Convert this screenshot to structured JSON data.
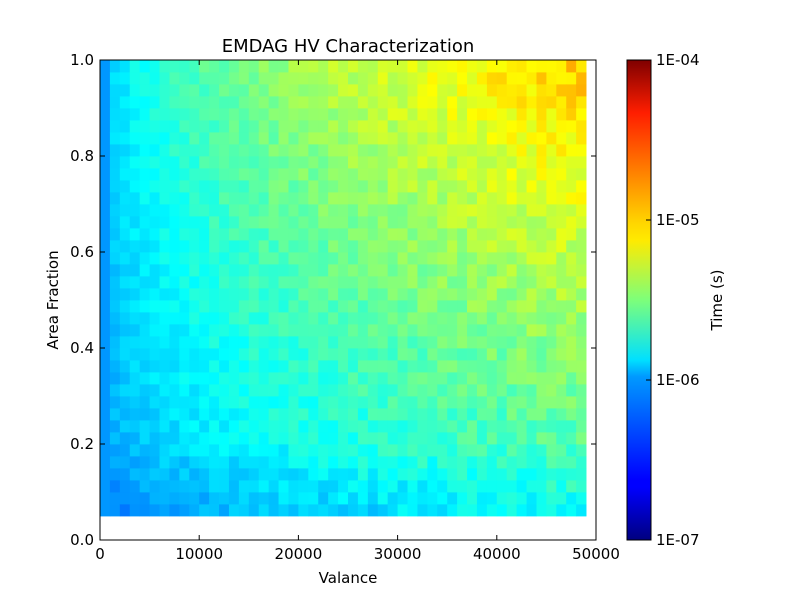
{
  "chart_data": {
    "type": "heatmap",
    "title": "EMDAG HV Characterization",
    "xlabel": "Valance",
    "ylabel": "Area Fraction",
    "xlim": [
      0,
      50000
    ],
    "ylim": [
      0.0,
      1.0
    ],
    "x_ticks": [
      0,
      10000,
      20000,
      30000,
      40000,
      50000
    ],
    "x_tick_labels": [
      "0",
      "10000",
      "20000",
      "30000",
      "40000",
      "50000"
    ],
    "y_ticks": [
      0.0,
      0.2,
      0.4,
      0.6,
      0.8,
      1.0
    ],
    "y_tick_labels": [
      "0.0",
      "0.2",
      "0.4",
      "0.6",
      "0.8",
      "1.0"
    ],
    "grid": false,
    "colormap": "jet",
    "colorscale": "log",
    "colorbar": {
      "label": "Time (s)",
      "range": [
        1e-07,
        0.0001
      ],
      "tick_values": [
        1e-07,
        1e-06,
        1e-05,
        0.0001
      ],
      "tick_labels": [
        "1E-07",
        "1E-06",
        "1E-05",
        "1E-04"
      ]
    },
    "grid_cells": {
      "x_start": 0,
      "x_end": 49000,
      "x_step": 1000,
      "y_start": 0.05,
      "y_end": 1.0,
      "y_step": 0.025
    },
    "value_model": "Time(s) ≈ 10^(log10 value) with log10 value ≈ -6.22 + 1.27·(Valance/49000)^0.5·(0.35 + 0.65·AreaFraction) plus cell noise; low-valance and low-fraction cells ≈ 6E-07–1E-06, top-right cells ≈ 3E-05"
  }
}
